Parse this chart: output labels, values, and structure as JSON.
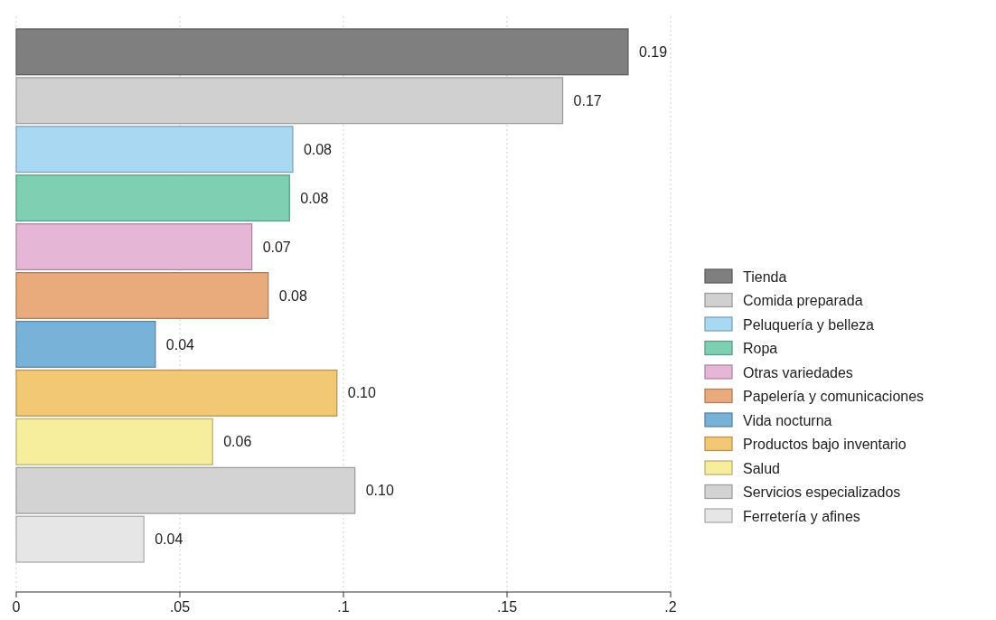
{
  "chart_data": {
    "type": "bar",
    "orientation": "horizontal",
    "categories": [
      null
    ],
    "series": [
      {
        "name": "Tienda",
        "color": "#7f7f7f",
        "values": [
          0.187
        ],
        "value_labels": [
          "0.19"
        ]
      },
      {
        "name": "Comida preparada",
        "color": "#d0d0d0",
        "values": [
          0.167
        ],
        "value_labels": [
          "0.17"
        ]
      },
      {
        "name": "Peluquería y belleza",
        "color": "#a9d9f2",
        "values": [
          0.0845
        ],
        "value_labels": [
          "0.08"
        ]
      },
      {
        "name": "Ropa",
        "color": "#7fd0b2",
        "values": [
          0.0835
        ],
        "value_labels": [
          "0.08"
        ]
      },
      {
        "name": "Otras variedades",
        "color": "#e6b6d6",
        "values": [
          0.072
        ],
        "value_labels": [
          "0.07"
        ]
      },
      {
        "name": "Papelería y comunicaciones",
        "color": "#e9aa7c",
        "values": [
          0.077
        ],
        "value_labels": [
          "0.08"
        ]
      },
      {
        "name": "Vida nocturna",
        "color": "#79b2d8",
        "values": [
          0.0425
        ],
        "value_labels": [
          "0.04"
        ]
      },
      {
        "name": "Productos bajo inventario",
        "color": "#f2c874",
        "values": [
          0.098
        ],
        "value_labels": [
          "0.10"
        ]
      },
      {
        "name": "Salud",
        "color": "#f7ee9d",
        "values": [
          0.06
        ],
        "value_labels": [
          "0.06"
        ]
      },
      {
        "name": "Servicios especializados",
        "color": "#d3d3d3",
        "values": [
          0.1035
        ],
        "value_labels": [
          "0.10"
        ]
      },
      {
        "name": "Ferretería y afines",
        "color": "#e6e6e6",
        "values": [
          0.039
        ],
        "value_labels": [
          "0.04"
        ]
      }
    ],
    "xlim": [
      0,
      0.2
    ],
    "xticks": [
      0,
      {
        "value": 0.05,
        "label": ".05"
      },
      {
        "value": 0.1,
        "label": ".1"
      },
      {
        "value": 0.15,
        "label": ".15"
      },
      {
        "value": 0.2,
        "label": ".2"
      }
    ],
    "grid": "x",
    "legend": "right",
    "tick_labels": "x"
  }
}
